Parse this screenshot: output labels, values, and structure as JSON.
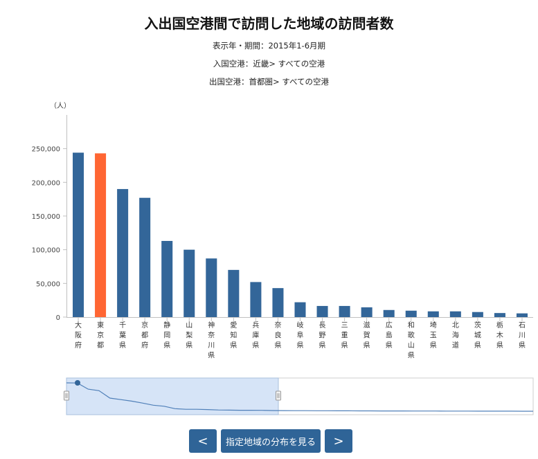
{
  "header": {
    "title": "入出国空港間で訪問した地域の訪問者数",
    "period": "表示年・期間：2015年1-6月期",
    "entry_airport": "入国空港：近畿> すべての空港",
    "exit_airport": "出国空港：首都圏> すべての空港"
  },
  "buttons": {
    "prev_label": "<",
    "distribution_label": "指定地域の分布を見る",
    "next_label": ">"
  },
  "chart_data": {
    "type": "bar",
    "unit_label": "（人）",
    "ylim": [
      0,
      300000
    ],
    "yticks": [
      0,
      50000,
      100000,
      150000,
      200000,
      250000
    ],
    "ytick_labels": [
      "0",
      "50,000",
      "100,000",
      "150,000",
      "200,000",
      "250,000"
    ],
    "categories": [
      "大阪府",
      "東京都",
      "千葉県",
      "京都府",
      "静岡県",
      "山梨県",
      "神奈川県",
      "愛知県",
      "兵庫県",
      "奈良県",
      "岐阜県",
      "長野県",
      "三重県",
      "滋賀県",
      "広島県",
      "和歌山県",
      "埼玉県",
      "北海道",
      "茨城県",
      "栃木県",
      "石川県"
    ],
    "values": [
      244000,
      243000,
      190000,
      177000,
      113000,
      100000,
      87000,
      70000,
      52000,
      43000,
      22000,
      16500,
      16500,
      14500,
      10500,
      9500,
      8500,
      8500,
      7500,
      6000,
      5500
    ],
    "highlight_index": 1,
    "bar_color": "#336699",
    "highlight_color": "#ff6633",
    "navigator": {
      "series": [
        244000,
        243000,
        190000,
        177000,
        113000,
        100000,
        87000,
        70000,
        52000,
        43000,
        22000,
        16500,
        16500,
        14500,
        10500,
        9500,
        8500,
        8500,
        7500,
        6000,
        5500,
        5000,
        4600,
        4200,
        3900,
        3600,
        3300,
        3000,
        2800,
        2600,
        2400,
        2200,
        2000,
        1800,
        1600,
        1400,
        1200,
        1000,
        800,
        600,
        400,
        300,
        200,
        100
      ],
      "selected_range": [
        0,
        20
      ]
    }
  }
}
